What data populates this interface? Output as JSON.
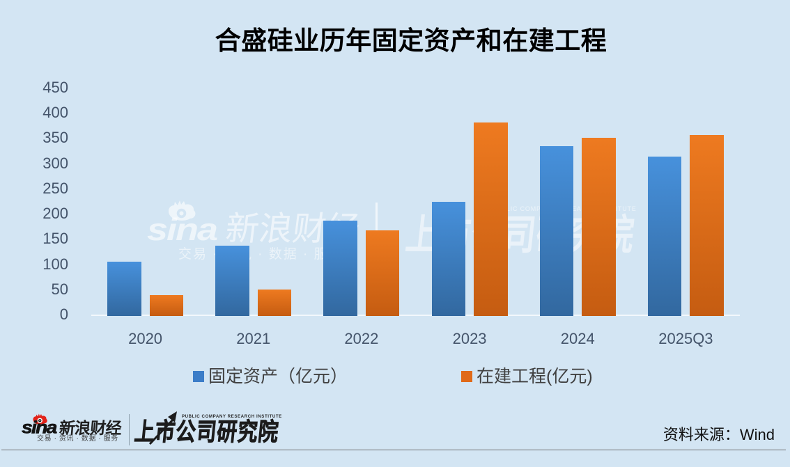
{
  "title": "合盛硅业历年固定资产和在建工程",
  "chart_data": {
    "type": "bar",
    "title": "合盛硅业历年固定资产和在建工程",
    "categories": [
      "2020",
      "2021",
      "2022",
      "2023",
      "2024",
      "2025Q3"
    ],
    "series": [
      {
        "name": "固定资产（亿元）",
        "values": [
          105,
          137,
          187,
          223,
          334,
          313
        ]
      },
      {
        "name": "在建工程(亿元)",
        "values": [
          39,
          50,
          167,
          380,
          351,
          356
        ]
      }
    ],
    "xlabel": "",
    "ylabel": "",
    "ylim": [
      0,
      450
    ],
    "yticks": [
      0,
      50,
      100,
      150,
      200,
      250,
      300,
      350,
      400,
      450
    ],
    "grid": false,
    "legend_position": "bottom"
  },
  "watermark": {
    "sina_text": "sina",
    "sina_cn": "新浪财经",
    "sina_slogan": "交易 · 资讯 · 数据 · 服务",
    "pcri_en": "PUBLIC COMPANY RESEARCH INSTITUTE",
    "pcri_cn": "上市公司研究院"
  },
  "footer": {
    "sina_text": "sina",
    "sina_cn": "新浪财经",
    "sina_slogan": "交易 · 资讯 · 数据 · 服务",
    "pcri_en": "PUBLIC COMPANY RESEARCH INSTITUTE",
    "pcri_cn": "上市公司研究院",
    "source": "资料来源：Wind"
  },
  "colors": {
    "background": "#d3e5f3",
    "axis_label": "#44546a",
    "blue_top": "#4791dc",
    "blue_bottom": "#32689f",
    "blue_legend": "#3b7dc8",
    "orange_top": "#ee7a20",
    "orange_bottom": "#c55c11",
    "orange_legend": "#e06a19",
    "sina_red": "#e2231a"
  }
}
